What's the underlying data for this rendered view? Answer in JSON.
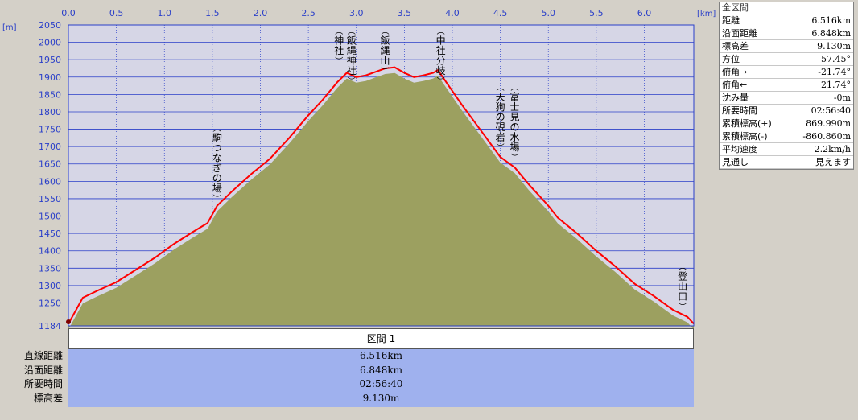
{
  "chart_data": {
    "type": "area",
    "x_unit": "[km]",
    "y_unit": "[m]",
    "xlim": [
      0,
      6.516
    ],
    "ylim": [
      1184,
      2050
    ],
    "x_ticks": [
      "0.0",
      "0.5",
      "1.0",
      "1.5",
      "2.0",
      "2.5",
      "3.0",
      "3.5",
      "4.0",
      "4.5",
      "5.0",
      "5.5",
      "6.0"
    ],
    "y_ticks": [
      "2050",
      "2000",
      "1950",
      "1900",
      "1850",
      "1800",
      "1750",
      "1700",
      "1650",
      "1600",
      "1550",
      "1500",
      "1450",
      "1400",
      "1350",
      "1300",
      "1250",
      "1184"
    ],
    "grid": true,
    "series": [
      {
        "line_color": "#ff0000",
        "fill_color": "#9ca060",
        "x": [
          0,
          0.15,
          0.3,
          0.5,
          0.7,
          0.9,
          1.1,
          1.3,
          1.45,
          1.55,
          1.7,
          1.9,
          2.1,
          2.3,
          2.5,
          2.65,
          2.8,
          2.9,
          3.0,
          3.1,
          3.2,
          3.3,
          3.4,
          3.5,
          3.6,
          3.7,
          3.8,
          3.85,
          3.95,
          4.1,
          4.3,
          4.5,
          4.65,
          4.8,
          4.9,
          5.0,
          5.1,
          5.3,
          5.5,
          5.7,
          5.9,
          6.1,
          6.3,
          6.45,
          6.516
        ],
        "y": [
          1190,
          1265,
          1285,
          1310,
          1345,
          1380,
          1420,
          1455,
          1480,
          1530,
          1570,
          1620,
          1665,
          1725,
          1790,
          1835,
          1885,
          1912,
          1900,
          1905,
          1915,
          1925,
          1928,
          1912,
          1900,
          1905,
          1912,
          1920,
          1880,
          1820,
          1745,
          1670,
          1640,
          1590,
          1560,
          1530,
          1495,
          1450,
          1400,
          1355,
          1305,
          1270,
          1230,
          1210,
          1190
        ]
      }
    ],
    "annotations": [
      {
        "text": "(駒つなぎの場)",
        "x": 1.55
      },
      {
        "text": "(神社)",
        "x": 2.82
      },
      {
        "text": "(飯縄神社)",
        "x": 2.95
      },
      {
        "text": "(飯縄山)",
        "x": 3.3
      },
      {
        "text": "(中社分岐)",
        "x": 3.88
      },
      {
        "text": "(天狗の硯岩)",
        "x": 4.5
      },
      {
        "text": "(富士見の水場)",
        "x": 4.65
      },
      {
        "text": "(登山口)",
        "x": 6.4
      }
    ]
  },
  "panel": {
    "title": "全区間",
    "rows": [
      {
        "label": "距離",
        "value": "6.516km"
      },
      {
        "label": "沿面距離",
        "value": "6.848km"
      },
      {
        "label": "標高差",
        "value": "9.130m"
      },
      {
        "label": "方位",
        "value": "57.45°"
      },
      {
        "label": "俯角→",
        "value": "-21.74°"
      },
      {
        "label": "俯角←",
        "value": "21.74°"
      },
      {
        "label": "沈み量",
        "value": "-0m"
      },
      {
        "label": "所要時間",
        "value": "02:56:40"
      },
      {
        "label": "累積標高(+)",
        "value": "869.990m"
      },
      {
        "label": "累積標高(-)",
        "value": "-860.860m"
      },
      {
        "label": "平均速度",
        "value": "2.2km/h"
      },
      {
        "label": "見通し",
        "value": "見えます"
      }
    ]
  },
  "section": {
    "header": "区間 1",
    "labels": [
      "直線距離",
      "沿面距離",
      "所要時間",
      "標高差"
    ],
    "values": [
      "6.516km",
      "6.848km",
      "02:56:40",
      "9.130m"
    ]
  }
}
